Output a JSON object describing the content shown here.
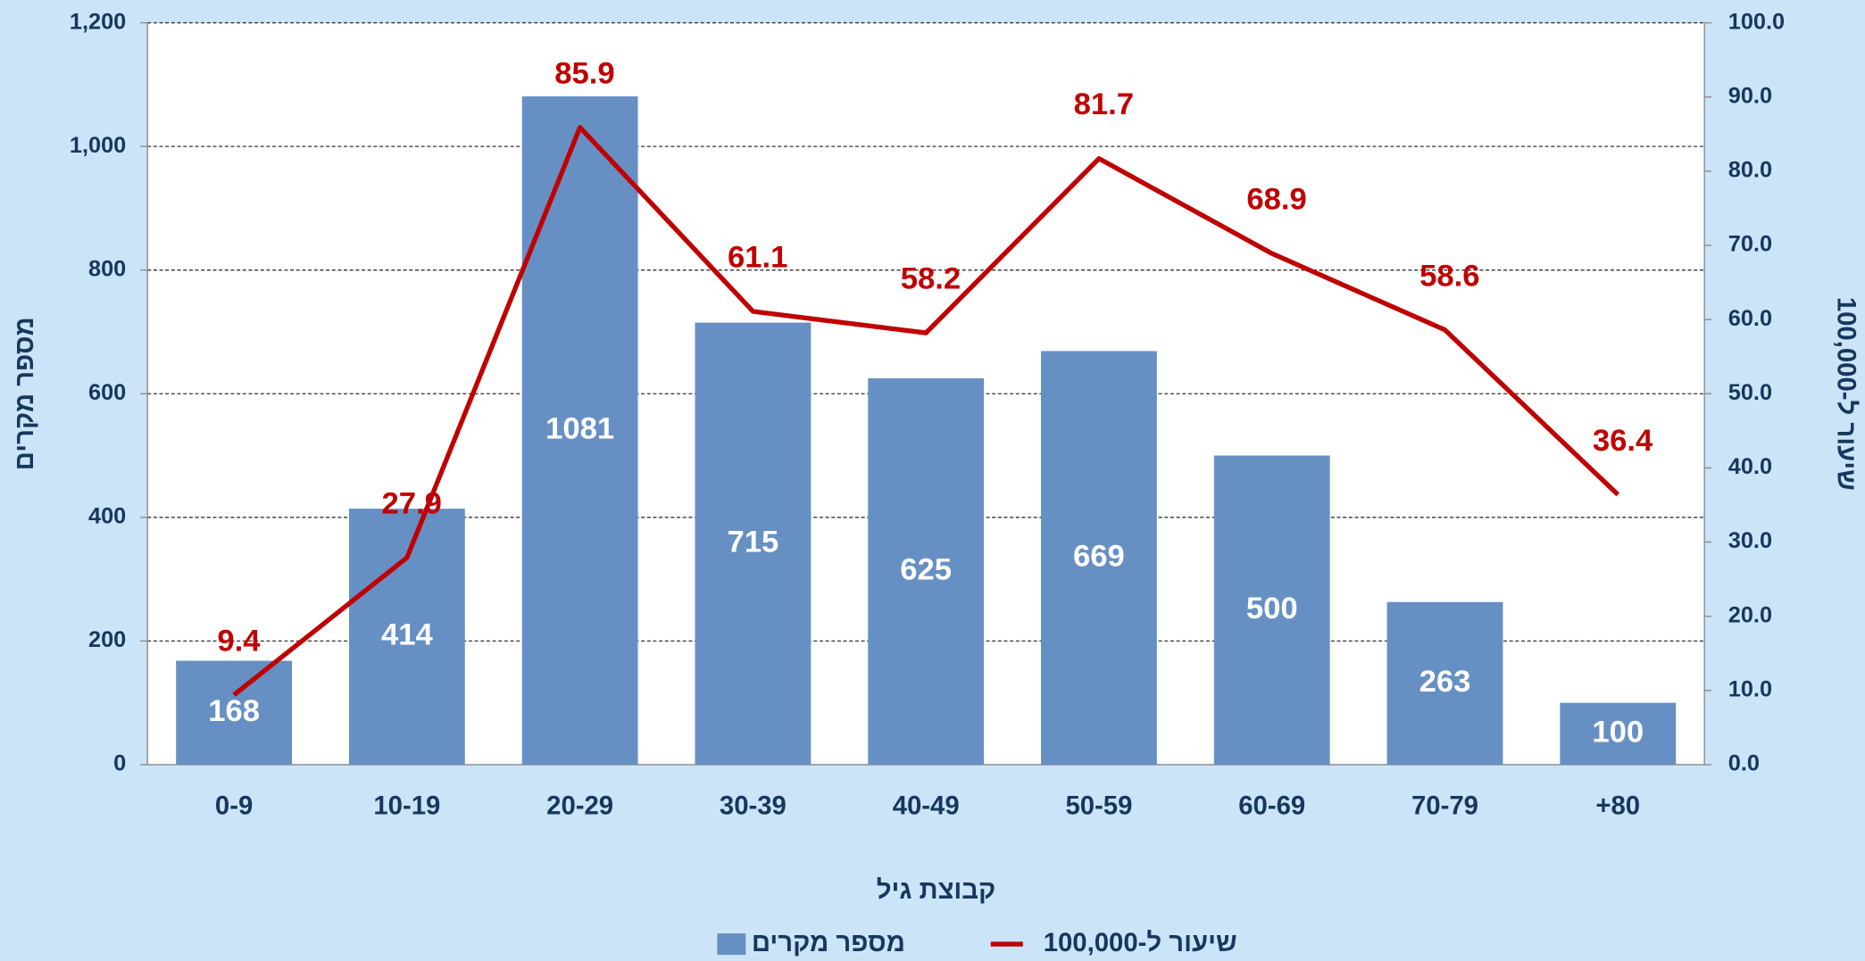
{
  "chart_data": {
    "type": "bar",
    "categories": [
      "0-9",
      "10-19",
      "20-29",
      "30-39",
      "40-49",
      "50-59",
      "60-69",
      "70-79",
      "+80"
    ],
    "series": [
      {
        "name": "מספר מקרים",
        "color": "#6690c4",
        "type": "bar",
        "values": [
          168,
          414,
          1081,
          715,
          625,
          669,
          500,
          263,
          100
        ]
      },
      {
        "name": "שיעור ל-100,000",
        "color": "#c00000",
        "type": "line",
        "axis": "y2",
        "values": [
          9.4,
          27.9,
          85.9,
          61.1,
          58.2,
          81.7,
          68.9,
          58.6,
          36.4
        ]
      }
    ],
    "ylim": [
      0,
      1200
    ],
    "yticks": [
      0,
      200,
      400,
      600,
      800,
      {
        "value": 1000,
        "label": "1,000"
      },
      {
        "value": 1200,
        "label": "1,200"
      }
    ],
    "y2lim": [
      0,
      100
    ],
    "y2ticks": [
      {
        "value": 0,
        "label": "0.0"
      },
      {
        "value": 10,
        "label": "10.0"
      },
      {
        "value": 20,
        "label": "20.0"
      },
      {
        "value": 30,
        "label": "30.0"
      },
      {
        "value": 40,
        "label": "40.0"
      },
      {
        "value": 50,
        "label": "50.0"
      },
      {
        "value": 60,
        "label": "60.0"
      },
      {
        "value": 70,
        "label": "70.0"
      },
      {
        "value": 80,
        "label": "80.0"
      },
      {
        "value": 90,
        "label": "90.0"
      },
      {
        "value": 100,
        "label": "100.0"
      }
    ],
    "xlabel": "קבוצת גיל",
    "ylabel": "מספר מקרים",
    "y2label": "שיעור ל-100,000",
    "grid": true,
    "legend": "bottom"
  }
}
